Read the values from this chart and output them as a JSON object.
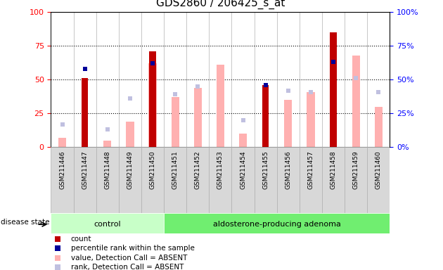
{
  "title": "GDS2860 / 206425_s_at",
  "samples": [
    "GSM211446",
    "GSM211447",
    "GSM211448",
    "GSM211449",
    "GSM211450",
    "GSM211451",
    "GSM211452",
    "GSM211453",
    "GSM211454",
    "GSM211455",
    "GSM211456",
    "GSM211457",
    "GSM211458",
    "GSM211459",
    "GSM211460"
  ],
  "control_count": 5,
  "group1_label": "control",
  "group2_label": "aldosterone-producing adenoma",
  "disease_state_label": "disease state",
  "count": [
    0,
    51,
    0,
    0,
    71,
    0,
    0,
    0,
    0,
    46,
    0,
    0,
    85,
    0,
    0
  ],
  "percentile_rank": [
    null,
    58,
    null,
    null,
    62,
    null,
    null,
    null,
    null,
    46,
    null,
    null,
    63,
    null,
    null
  ],
  "value_absent": [
    7,
    null,
    5,
    19,
    62,
    37,
    44,
    61,
    10,
    null,
    35,
    41,
    null,
    68,
    30
  ],
  "rank_absent": [
    17,
    null,
    13,
    36,
    null,
    39,
    45,
    null,
    20,
    null,
    42,
    41,
    null,
    51,
    41
  ],
  "ylim": [
    0,
    100
  ],
  "yticks": [
    0,
    25,
    50,
    75,
    100
  ],
  "color_count": "#c00000",
  "color_percentile": "#000099",
  "color_value_absent": "#ffb0b0",
  "color_rank_absent": "#c0c0e0",
  "col_bg_color": "#d8d8d8",
  "col_border_color": "#b0b0b0",
  "group1_bg": "#c8ffc8",
  "group2_bg": "#70ee70",
  "bar_width": 0.35,
  "legend_items": [
    {
      "color": "#c00000",
      "label": "count"
    },
    {
      "color": "#000099",
      "label": "percentile rank within the sample"
    },
    {
      "color": "#ffb0b0",
      "label": "value, Detection Call = ABSENT"
    },
    {
      "color": "#c0c0e0",
      "label": "rank, Detection Call = ABSENT"
    }
  ]
}
